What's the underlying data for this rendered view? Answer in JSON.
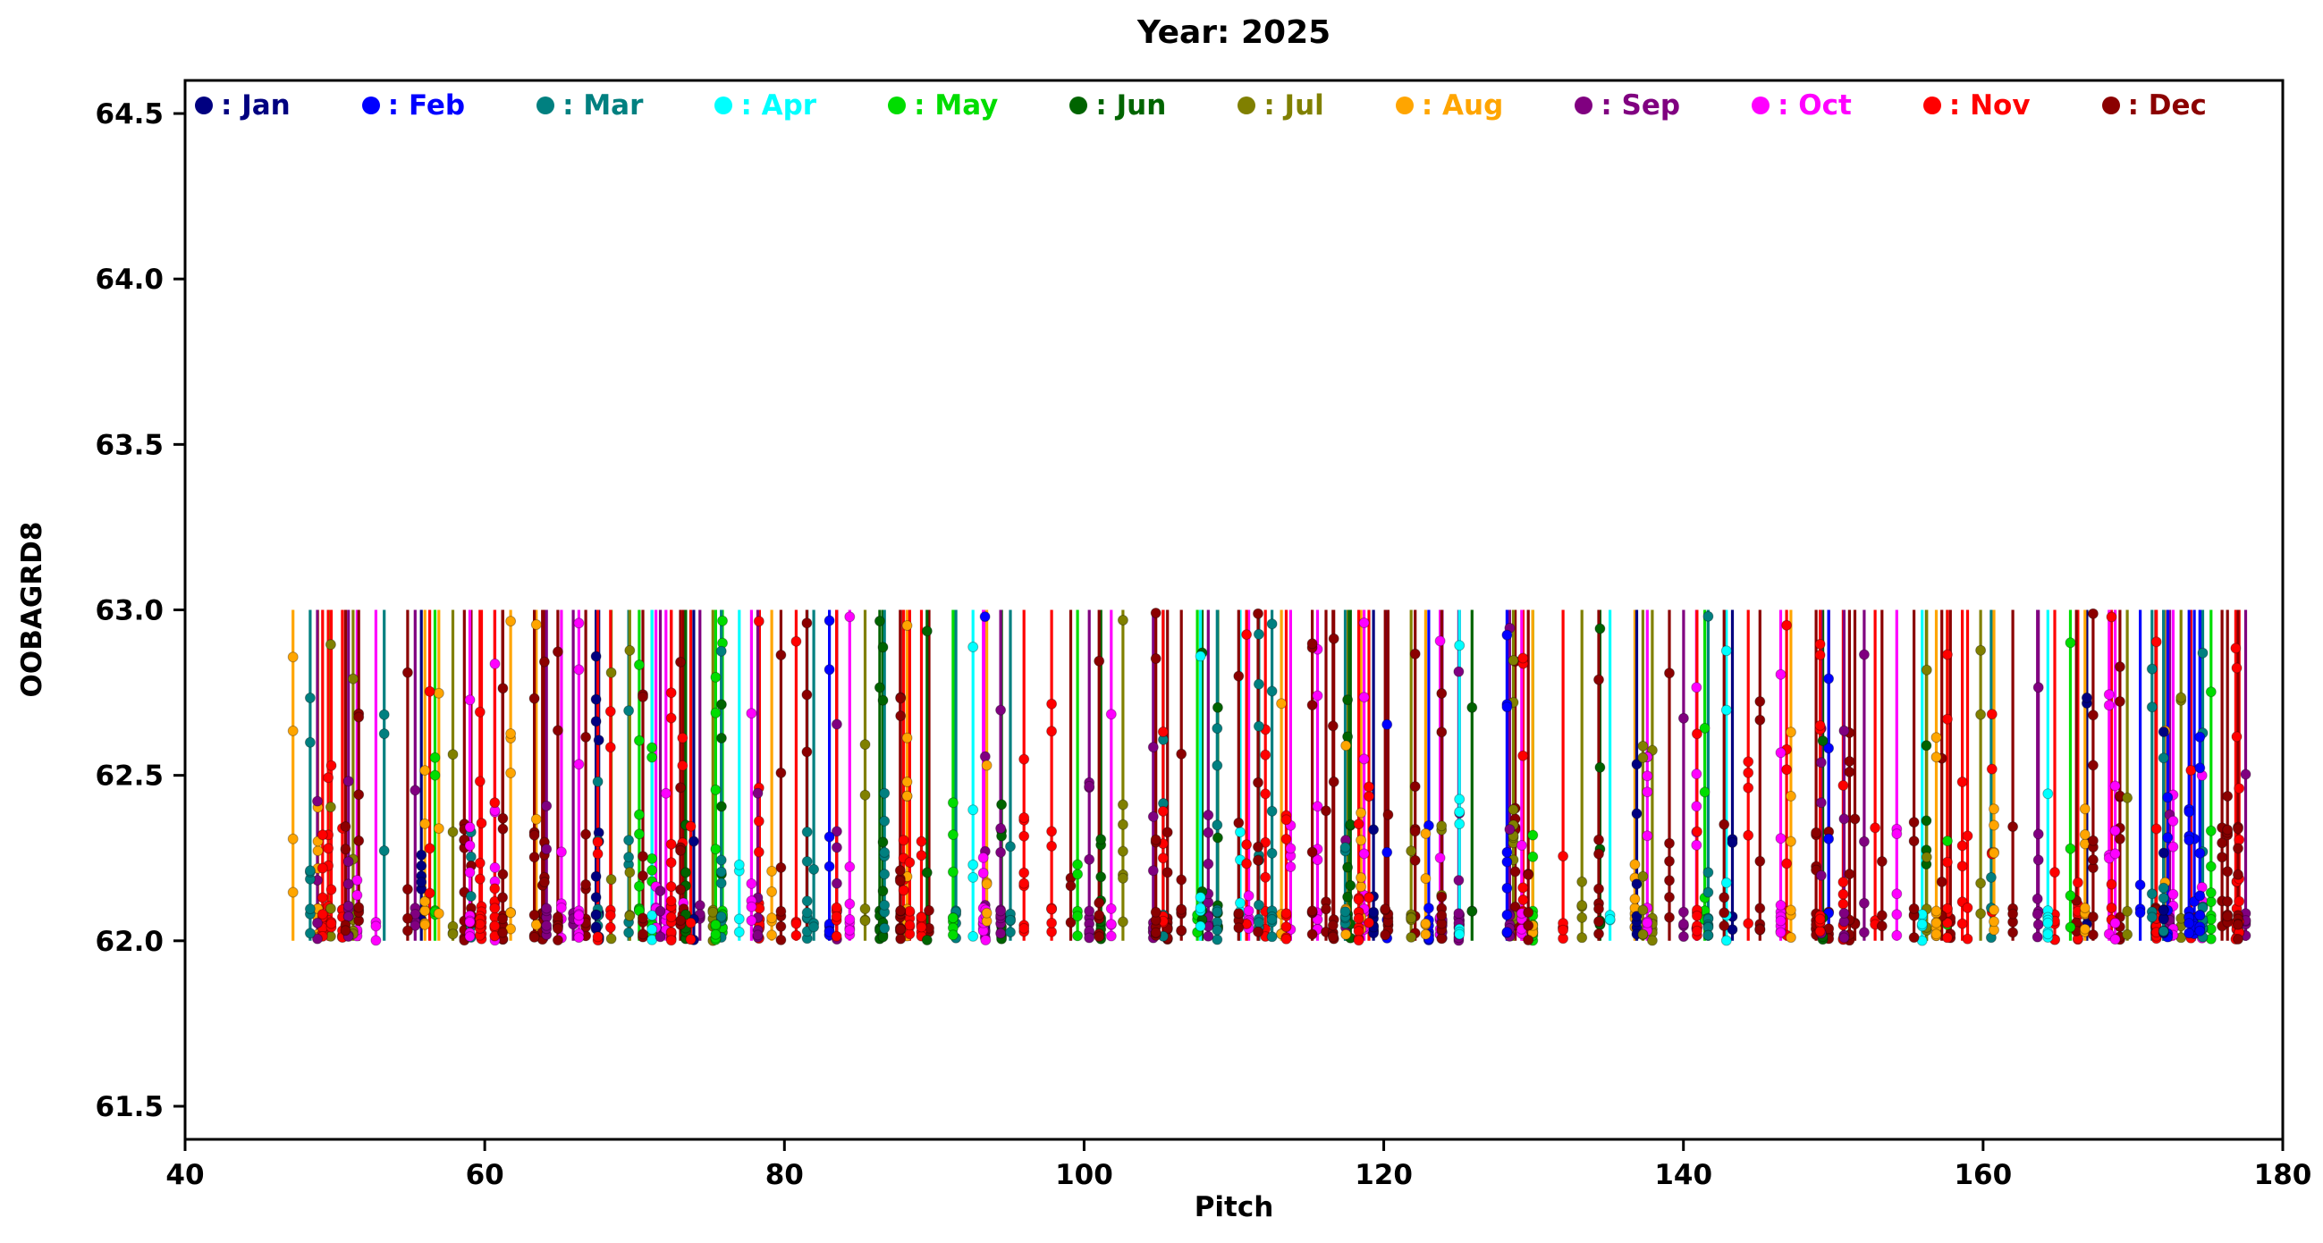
{
  "page": {
    "background": "#ffffff"
  },
  "chart_data": {
    "type": "scatter",
    "title": "Year: 2025",
    "xlabel": "Pitch",
    "ylabel": "OOBAGRD8",
    "xlim": [
      40,
      180
    ],
    "ylim": [
      61.4,
      64.6
    ],
    "xticks": [
      40,
      60,
      80,
      100,
      120,
      140,
      160,
      180
    ],
    "yticks": [
      61.5,
      62.0,
      62.5,
      63.0,
      63.5,
      64.0,
      64.5
    ],
    "grid": false,
    "legend_position": "top-inside-row",
    "months": [
      {
        "name": "Jan",
        "legend_label": ": Jan",
        "color": "#000080"
      },
      {
        "name": "Feb",
        "legend_label": ": Feb",
        "color": "#0000ff"
      },
      {
        "name": "Mar",
        "legend_label": ": Mar",
        "color": "#008080"
      },
      {
        "name": "Apr",
        "legend_label": ": Apr",
        "color": "#00ffff"
      },
      {
        "name": "May",
        "legend_label": ": May",
        "color": "#00dd00"
      },
      {
        "name": "Jun",
        "legend_label": ": Jun",
        "color": "#006400"
      },
      {
        "name": "Jul",
        "legend_label": ": Jul",
        "color": "#808000"
      },
      {
        "name": "Aug",
        "legend_label": ": Aug",
        "color": "#ffa500"
      },
      {
        "name": "Sep",
        "legend_label": ": Sep",
        "color": "#800080"
      },
      {
        "name": "Oct",
        "legend_label": ": Oct",
        "color": "#ff00ff"
      },
      {
        "name": "Nov",
        "legend_label": ": Nov",
        "color": "#ff0000"
      },
      {
        "name": "Dec",
        "legend_label": ": Dec",
        "color": "#8b0000"
      }
    ],
    "stems": {
      "description": "Dense vertical stems, one per pitch event, spanning y=62.0 to y=63.0 across pitch values ~47 to ~178, colored by month; circular dot markers scattered along each stem, heavily clustered between y=62.0 and y=62.3 with occasional dots up to y=63.0.",
      "y_bottom": 62.0,
      "y_top": 63.0,
      "x_min": 47,
      "x_max": 178,
      "count": 280,
      "seed": 1337,
      "month_weights": [
        4,
        4,
        5,
        4,
        5,
        5,
        5,
        6,
        10,
        12,
        18,
        22
      ],
      "dots_per_stem_min": 3,
      "dots_per_stem_max": 10
    }
  }
}
